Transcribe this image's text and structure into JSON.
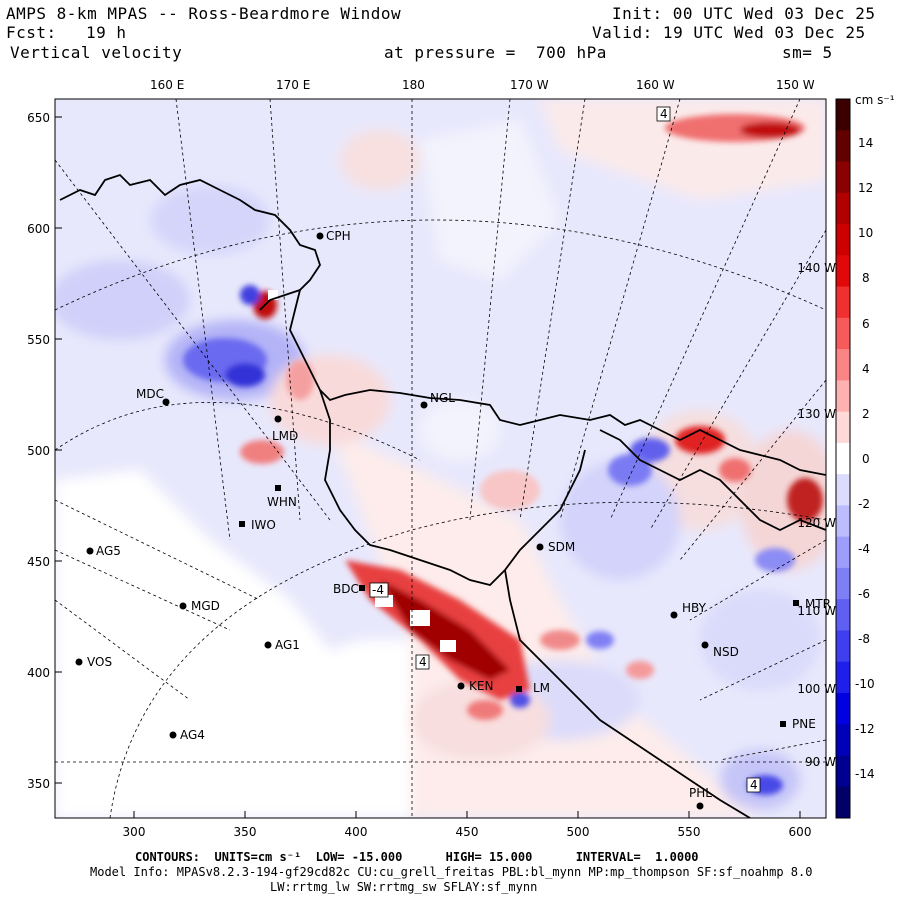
{
  "header": {
    "title": "AMPS 8-km MPAS -- Ross-Beardmore Window",
    "forecast_label": "Fcst:",
    "forecast_hours": "19 h",
    "field": "Vertical velocity",
    "init": "Init: 00 UTC Wed 03 Dec 25",
    "valid": "Valid: 19 UTC Wed 03 Dec 25",
    "pressure": "at pressure =  700 hPa",
    "smoothing": "sm= 5"
  },
  "axes": {
    "top_lon_labels": [
      "160 E",
      "170 E",
      "180",
      "170 W",
      "160 W",
      "150 W"
    ],
    "y_ticks": [
      "650",
      "600",
      "550",
      "500",
      "450",
      "400",
      "350"
    ],
    "x_ticks": [
      "300",
      "350",
      "400",
      "450",
      "500",
      "550",
      "600"
    ],
    "right_lon_labels": [
      "140 W",
      "130 W",
      "120 W",
      "110 W",
      "100 W",
      "90 W"
    ]
  },
  "colorbar": {
    "units": "cm s⁻¹",
    "labels": [
      "14",
      "12",
      "10",
      "8",
      "6",
      "4",
      "2",
      "0",
      "-2",
      "-4",
      "-6",
      "-8",
      "-10",
      "-12",
      "-14"
    ],
    "colors": [
      "#3a0000",
      "#620000",
      "#8b0000",
      "#b00000",
      "#cc0000",
      "#e00808",
      "#f03030",
      "#f75a5a",
      "#fb8585",
      "#fdb1b1",
      "#ffd8d8",
      "#ffffff",
      "#dcdcff",
      "#bdbdfd",
      "#9d9dfb",
      "#7e7ef7",
      "#5f5ff3",
      "#3f3fef",
      "#1f1feb",
      "#0000e0",
      "#0000b8",
      "#000090",
      "#000068"
    ]
  },
  "stations": [
    {
      "name": "CPH"
    },
    {
      "name": "MDC"
    },
    {
      "name": "NGL"
    },
    {
      "name": "LMD"
    },
    {
      "name": "WHN"
    },
    {
      "name": "IWO"
    },
    {
      "name": "AG5"
    },
    {
      "name": "SDM"
    },
    {
      "name": "BDC"
    },
    {
      "name": "MGD"
    },
    {
      "name": "AG1"
    },
    {
      "name": "VOS"
    },
    {
      "name": "AG4"
    },
    {
      "name": "KEN"
    },
    {
      "name": "HBY"
    },
    {
      "name": "NSD"
    },
    {
      "name": "MTR"
    },
    {
      "name": "PNE"
    },
    {
      "name": "PHL"
    },
    {
      "name": "LM"
    }
  ],
  "contour_labels": [
    "4",
    "-4",
    "4",
    "4"
  ],
  "footer": {
    "contours": "CONTOURS:  UNITS=cm s⁻¹  LOW= -15.000      HIGH= 15.000      INTERVAL=  1.0000",
    "model_info": "Model Info: MPASv8.2.3-194-gf29cd82c CU:cu_grell_freitas PBL:bl_mynn MP:mp_thompson SF:sf_noahmp 8.0",
    "model_info2": "LW:rrtmg_lw SW:rrtmg_sw SFLAY:sf_mynn"
  }
}
